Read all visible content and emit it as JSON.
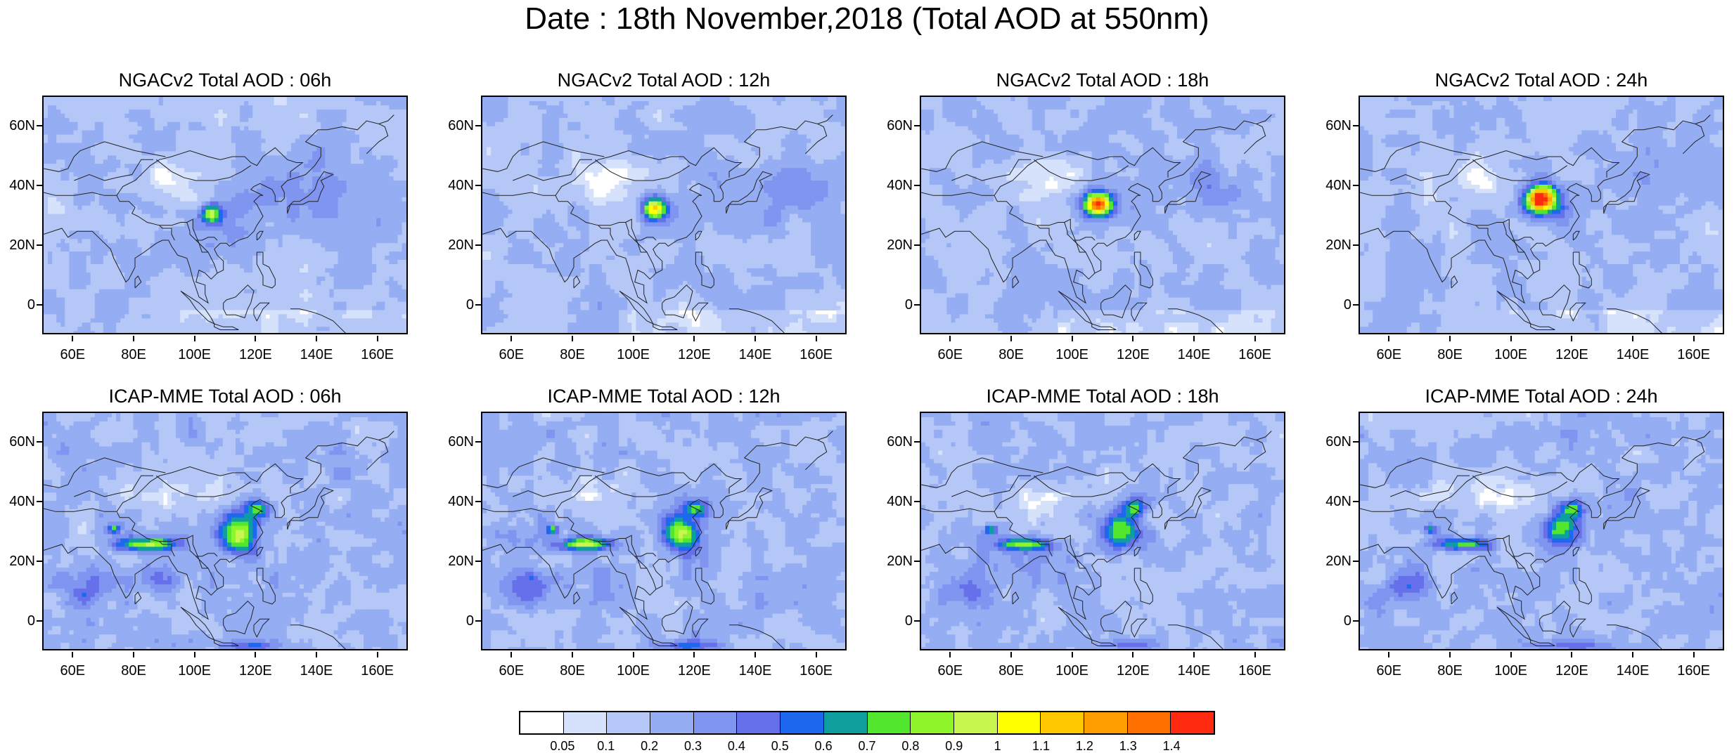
{
  "title": "Date : 18th November,2018 (Total AOD at 550nm)",
  "lat_ticks": [
    "60N",
    "40N",
    "20N",
    "0"
  ],
  "lon_ticks": [
    "60E",
    "80E",
    "100E",
    "120E",
    "140E",
    "160E"
  ],
  "panels": [
    {
      "title": "NGACv2 Total AOD : 06h",
      "model": "NGACv2",
      "hour": "06h"
    },
    {
      "title": "NGACv2 Total AOD : 12h",
      "model": "NGACv2",
      "hour": "12h"
    },
    {
      "title": "NGACv2 Total AOD : 18h",
      "model": "NGACv2",
      "hour": "18h"
    },
    {
      "title": "NGACv2 Total AOD : 24h",
      "model": "NGACv2",
      "hour": "24h"
    },
    {
      "title": "ICAP-MME Total AOD : 06h",
      "model": "ICAP-MME",
      "hour": "06h"
    },
    {
      "title": "ICAP-MME Total AOD : 12h",
      "model": "ICAP-MME",
      "hour": "12h"
    },
    {
      "title": "ICAP-MME Total AOD : 18h",
      "model": "ICAP-MME",
      "hour": "18h"
    },
    {
      "title": "ICAP-MME Total AOD : 24h",
      "model": "ICAP-MME",
      "hour": "24h"
    }
  ],
  "colorbar": {
    "labels": [
      "0.05",
      "0.1",
      "0.2",
      "0.3",
      "0.4",
      "0.5",
      "0.6",
      "0.7",
      "0.8",
      "0.9",
      "1",
      "1.1",
      "1.2",
      "1.3",
      "1.4"
    ],
    "colors": [
      "#ffffff",
      "#d6e1fb",
      "#b5c7f6",
      "#95adf2",
      "#7f95f0",
      "#6670ea",
      "#1e68f0",
      "#0f9e9e",
      "#52e62e",
      "#8ef52a",
      "#c8f550",
      "#ffff00",
      "#ffc800",
      "#ff9e00",
      "#ff7000",
      "#ff2a10"
    ]
  }
}
